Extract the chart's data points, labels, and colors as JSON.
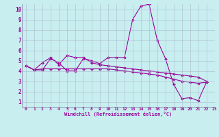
{
  "xlabel": "Windchill (Refroidissement éolien,°C)",
  "ylabel": "",
  "background_color": "#c8eef0",
  "line_color": "#990099",
  "grid_color": "#aabbcc",
  "xlim": [
    -0.5,
    22.5
  ],
  "ylim": [
    0.5,
    10.5
  ],
  "xticks": [
    0,
    1,
    2,
    3,
    4,
    5,
    6,
    7,
    8,
    9,
    10,
    11,
    12,
    13,
    14,
    15,
    16,
    17,
    18,
    19,
    20,
    21,
    22,
    23
  ],
  "yticks": [
    1,
    2,
    3,
    4,
    5,
    6,
    7,
    8,
    9,
    10
  ],
  "series": [
    [
      4.5,
      4.1,
      4.1,
      5.2,
      4.8,
      4.0,
      4.0,
      5.2,
      5.0,
      4.7,
      5.3,
      5.3,
      5.3,
      9.0,
      10.3,
      10.5,
      7.0,
      5.2,
      2.7,
      1.3,
      1.4,
      1.1,
      2.9
    ],
    [
      4.5,
      4.1,
      4.8,
      5.3,
      4.6,
      5.5,
      5.3,
      5.3,
      4.8,
      4.6,
      4.5,
      4.4,
      4.3,
      4.2,
      4.1,
      4.0,
      3.9,
      3.8,
      3.7,
      3.6,
      3.5,
      3.4,
      3.0
    ],
    [
      4.5,
      4.1,
      4.2,
      4.2,
      4.2,
      4.2,
      4.2,
      4.2,
      4.2,
      4.2,
      4.2,
      4.1,
      4.0,
      3.9,
      3.8,
      3.7,
      3.6,
      3.4,
      3.2,
      3.0,
      2.9,
      2.8,
      2.9
    ]
  ]
}
